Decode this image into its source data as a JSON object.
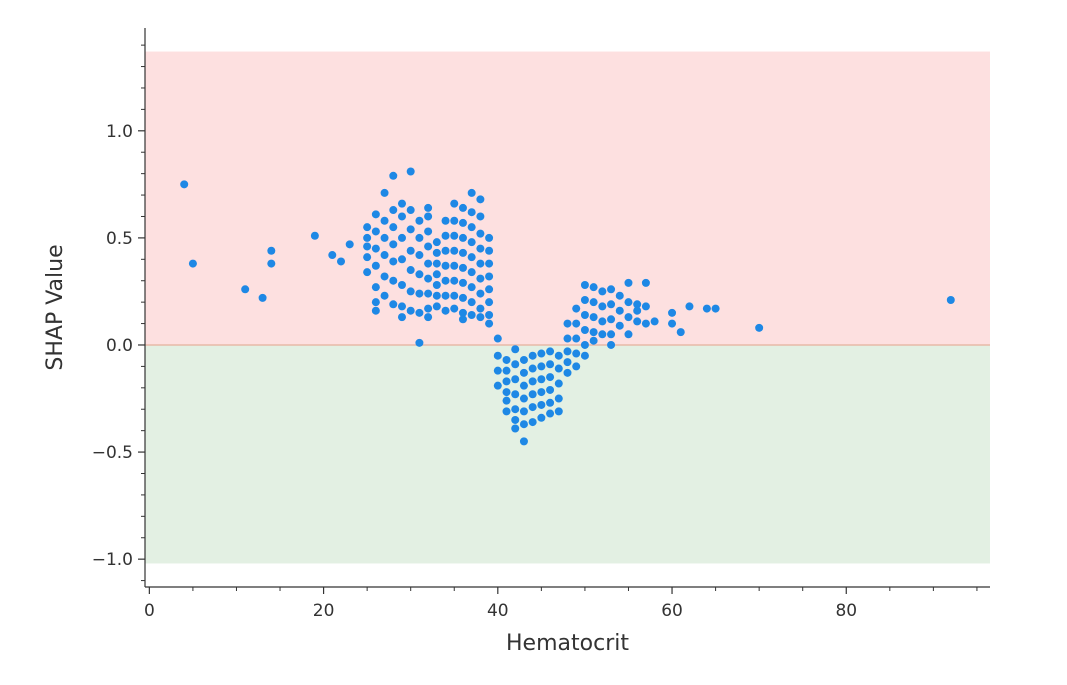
{
  "chart_data": {
    "type": "scatter",
    "title": "",
    "xlabel": "Hematocrit",
    "ylabel": "SHAP Value",
    "xlim": [
      -0.5,
      96.5
    ],
    "ylim": [
      -1.13,
      1.48
    ],
    "xticks": [
      0,
      20,
      40,
      60,
      80
    ],
    "xtick_labels": [
      "0",
      "20",
      "40",
      "60",
      "80"
    ],
    "yticks": [
      -1.0,
      -0.5,
      0.0,
      0.5,
      1.0
    ],
    "ytick_labels": [
      "−1.0",
      "−0.5",
      "0.0",
      "0.5",
      "1.0"
    ],
    "grid": false,
    "legend": "none",
    "point_color": "#1e88e5",
    "bands": [
      {
        "range": [
          0.0,
          1.37
        ],
        "color": "#fde0e0"
      },
      {
        "range": [
          -1.02,
          0.0
        ],
        "color": "#e3f0e3"
      }
    ],
    "zero_line_color": "#e8b9a8",
    "points": [
      [
        4,
        0.75
      ],
      [
        5,
        0.38
      ],
      [
        11,
        0.26
      ],
      [
        13,
        0.22
      ],
      [
        14,
        0.44
      ],
      [
        14,
        0.38
      ],
      [
        19,
        0.51
      ],
      [
        21,
        0.42
      ],
      [
        22,
        0.39
      ],
      [
        23,
        0.47
      ],
      [
        25,
        0.55
      ],
      [
        25,
        0.5
      ],
      [
        25,
        0.46
      ],
      [
        25,
        0.41
      ],
      [
        25,
        0.34
      ],
      [
        26,
        0.61
      ],
      [
        26,
        0.53
      ],
      [
        26,
        0.45
      ],
      [
        26,
        0.37
      ],
      [
        26,
        0.27
      ],
      [
        26,
        0.2
      ],
      [
        26,
        0.16
      ],
      [
        27,
        0.71
      ],
      [
        27,
        0.58
      ],
      [
        27,
        0.5
      ],
      [
        27,
        0.42
      ],
      [
        27,
        0.32
      ],
      [
        27,
        0.23
      ],
      [
        28,
        0.79
      ],
      [
        28,
        0.63
      ],
      [
        28,
        0.55
      ],
      [
        28,
        0.47
      ],
      [
        28,
        0.39
      ],
      [
        28,
        0.3
      ],
      [
        28,
        0.19
      ],
      [
        29,
        0.66
      ],
      [
        29,
        0.6
      ],
      [
        29,
        0.5
      ],
      [
        29,
        0.4
      ],
      [
        29,
        0.28
      ],
      [
        29,
        0.18
      ],
      [
        29,
        0.13
      ],
      [
        30,
        0.81
      ],
      [
        30,
        0.63
      ],
      [
        30,
        0.54
      ],
      [
        30,
        0.44
      ],
      [
        30,
        0.35
      ],
      [
        30,
        0.25
      ],
      [
        30,
        0.16
      ],
      [
        31,
        0.01
      ],
      [
        31,
        0.58
      ],
      [
        31,
        0.5
      ],
      [
        31,
        0.42
      ],
      [
        31,
        0.33
      ],
      [
        31,
        0.24
      ],
      [
        31,
        0.15
      ],
      [
        32,
        0.64
      ],
      [
        32,
        0.6
      ],
      [
        32,
        0.53
      ],
      [
        32,
        0.46
      ],
      [
        32,
        0.38
      ],
      [
        32,
        0.31
      ],
      [
        32,
        0.24
      ],
      [
        32,
        0.17
      ],
      [
        32,
        0.13
      ],
      [
        33,
        0.48
      ],
      [
        33,
        0.43
      ],
      [
        33,
        0.38
      ],
      [
        33,
        0.33
      ],
      [
        33,
        0.28
      ],
      [
        33,
        0.23
      ],
      [
        33,
        0.18
      ],
      [
        34,
        0.58
      ],
      [
        34,
        0.51
      ],
      [
        34,
        0.44
      ],
      [
        34,
        0.37
      ],
      [
        34,
        0.3
      ],
      [
        34,
        0.23
      ],
      [
        34,
        0.16
      ],
      [
        35,
        0.66
      ],
      [
        35,
        0.58
      ],
      [
        35,
        0.51
      ],
      [
        35,
        0.44
      ],
      [
        35,
        0.37
      ],
      [
        35,
        0.3
      ],
      [
        35,
        0.23
      ],
      [
        35,
        0.17
      ],
      [
        36,
        0.64
      ],
      [
        36,
        0.57
      ],
      [
        36,
        0.5
      ],
      [
        36,
        0.43
      ],
      [
        36,
        0.36
      ],
      [
        36,
        0.29
      ],
      [
        36,
        0.22
      ],
      [
        36,
        0.15
      ],
      [
        36,
        0.12
      ],
      [
        37,
        0.71
      ],
      [
        37,
        0.62
      ],
      [
        37,
        0.55
      ],
      [
        37,
        0.48
      ],
      [
        37,
        0.41
      ],
      [
        37,
        0.34
      ],
      [
        37,
        0.27
      ],
      [
        37,
        0.2
      ],
      [
        37,
        0.14
      ],
      [
        38,
        0.68
      ],
      [
        38,
        0.6
      ],
      [
        38,
        0.52
      ],
      [
        38,
        0.45
      ],
      [
        38,
        0.38
      ],
      [
        38,
        0.31
      ],
      [
        38,
        0.24
      ],
      [
        38,
        0.17
      ],
      [
        38,
        0.13
      ],
      [
        39,
        0.5
      ],
      [
        39,
        0.44
      ],
      [
        39,
        0.38
      ],
      [
        39,
        0.32
      ],
      [
        39,
        0.26
      ],
      [
        39,
        0.2
      ],
      [
        39,
        0.14
      ],
      [
        39,
        0.1
      ],
      [
        40,
        0.03
      ],
      [
        40,
        -0.05
      ],
      [
        40,
        -0.12
      ],
      [
        40,
        -0.19
      ],
      [
        41,
        -0.22
      ],
      [
        41,
        -0.07
      ],
      [
        41,
        -0.12
      ],
      [
        41,
        -0.17
      ],
      [
        41,
        -0.26
      ],
      [
        41,
        -0.31
      ],
      [
        42,
        -0.02
      ],
      [
        42,
        -0.09
      ],
      [
        42,
        -0.16
      ],
      [
        42,
        -0.23
      ],
      [
        42,
        -0.3
      ],
      [
        42,
        -0.35
      ],
      [
        42,
        -0.39
      ],
      [
        43,
        -0.45
      ],
      [
        43,
        -0.07
      ],
      [
        43,
        -0.13
      ],
      [
        43,
        -0.19
      ],
      [
        43,
        -0.25
      ],
      [
        43,
        -0.31
      ],
      [
        43,
        -0.37
      ],
      [
        44,
        -0.05
      ],
      [
        44,
        -0.11
      ],
      [
        44,
        -0.17
      ],
      [
        44,
        -0.23
      ],
      [
        44,
        -0.29
      ],
      [
        44,
        -0.36
      ],
      [
        45,
        -0.04
      ],
      [
        45,
        -0.1
      ],
      [
        45,
        -0.16
      ],
      [
        45,
        -0.22
      ],
      [
        45,
        -0.28
      ],
      [
        45,
        -0.34
      ],
      [
        46,
        -0.03
      ],
      [
        46,
        -0.09
      ],
      [
        46,
        -0.15
      ],
      [
        46,
        -0.21
      ],
      [
        46,
        -0.27
      ],
      [
        46,
        -0.32
      ],
      [
        47,
        -0.05
      ],
      [
        47,
        -0.11
      ],
      [
        47,
        -0.18
      ],
      [
        47,
        -0.25
      ],
      [
        47,
        -0.31
      ],
      [
        48,
        0.1
      ],
      [
        48,
        0.03
      ],
      [
        48,
        -0.03
      ],
      [
        48,
        -0.08
      ],
      [
        48,
        -0.13
      ],
      [
        49,
        0.17
      ],
      [
        49,
        0.1
      ],
      [
        49,
        0.03
      ],
      [
        49,
        -0.04
      ],
      [
        49,
        -0.1
      ],
      [
        50,
        0.28
      ],
      [
        50,
        0.21
      ],
      [
        50,
        0.14
      ],
      [
        50,
        0.07
      ],
      [
        50,
        0.0
      ],
      [
        50,
        -0.05
      ],
      [
        51,
        0.27
      ],
      [
        51,
        0.2
      ],
      [
        51,
        0.13
      ],
      [
        51,
        0.06
      ],
      [
        51,
        0.02
      ],
      [
        52,
        0.25
      ],
      [
        52,
        0.18
      ],
      [
        52,
        0.11
      ],
      [
        52,
        0.05
      ],
      [
        53,
        0.26
      ],
      [
        53,
        0.19
      ],
      [
        53,
        0.12
      ],
      [
        53,
        0.05
      ],
      [
        53,
        0.0
      ],
      [
        54,
        0.23
      ],
      [
        54,
        0.16
      ],
      [
        54,
        0.09
      ],
      [
        55,
        0.29
      ],
      [
        55,
        0.2
      ],
      [
        55,
        0.13
      ],
      [
        55,
        0.05
      ],
      [
        56,
        0.19
      ],
      [
        56,
        0.16
      ],
      [
        56,
        0.11
      ],
      [
        57,
        0.29
      ],
      [
        57,
        0.18
      ],
      [
        57,
        0.1
      ],
      [
        58,
        0.11
      ],
      [
        60,
        0.15
      ],
      [
        60,
        0.1
      ],
      [
        61,
        0.06
      ],
      [
        62,
        0.18
      ],
      [
        64,
        0.17
      ],
      [
        65,
        0.17
      ],
      [
        70,
        0.08
      ],
      [
        92,
        0.21
      ]
    ]
  }
}
